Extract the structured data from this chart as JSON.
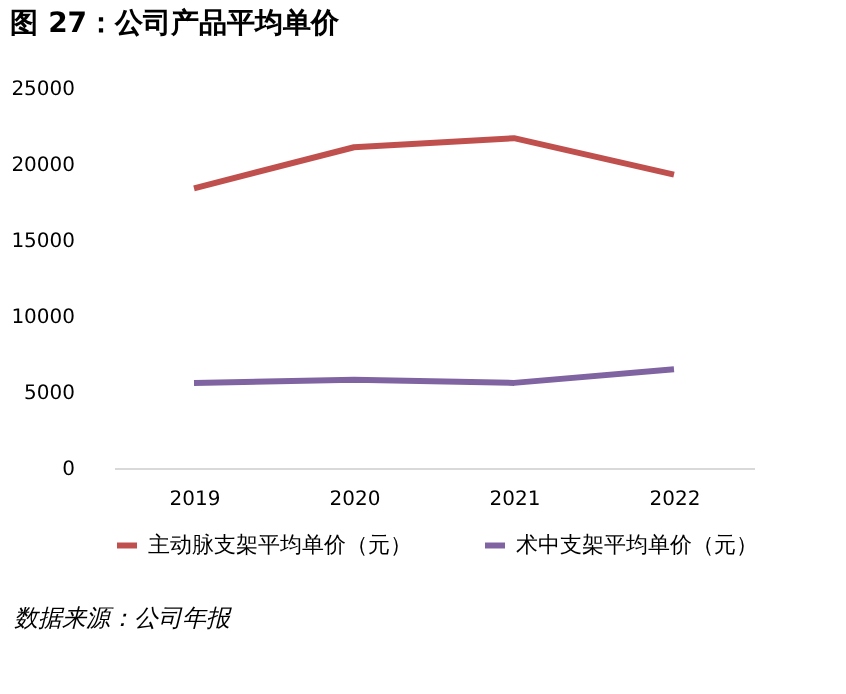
{
  "chart_data": {
    "type": "line",
    "title": "图 27：公司产品平均单价",
    "categories": [
      "2019",
      "2020",
      "2021",
      "2022"
    ],
    "series": [
      {
        "name": "主动脉支架平均单价（元）",
        "color": "#c0504d",
        "values": [
          18400,
          21100,
          21700,
          19300
        ]
      },
      {
        "name": "术中支架平均单价（元）",
        "color": "#8064a2",
        "values": [
          5600,
          5800,
          5600,
          6500
        ]
      }
    ],
    "ylim": [
      0,
      25000
    ],
    "yticks": [
      0,
      5000,
      10000,
      15000,
      20000,
      25000
    ],
    "grid": false,
    "legend": "bottom",
    "marker": "none",
    "line_style": "solid",
    "annotations": [
      "数据来源：公司年报"
    ]
  }
}
